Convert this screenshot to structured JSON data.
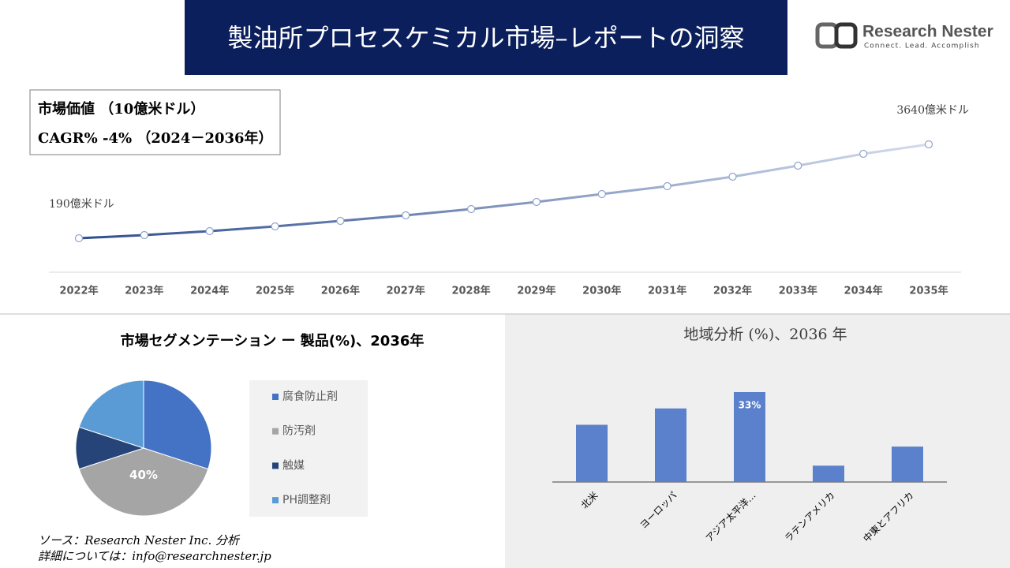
{
  "header": {
    "title": "製油所プロセスケミカル市場–レポートの洞察",
    "logo_name": "Research Nester",
    "logo_tagline": "Connect. Lead. Accomplish"
  },
  "chart_data": [
    {
      "type": "line",
      "annotations": [
        "市場価値 （10億米ドル）",
        "CAGR% -4% （2024－2036年）"
      ],
      "categories": [
        "2022年",
        "2023年",
        "2024年",
        "2025年",
        "2026年",
        "2027年",
        "2028年",
        "2029年",
        "2030年",
        "2031年",
        "2032年",
        "2033年",
        "2034年",
        "2035年"
      ],
      "values": [
        190,
        306,
        451,
        625,
        828,
        1031,
        1263,
        1524,
        1814,
        2104,
        2452,
        2858,
        3293,
        3640
      ],
      "value_labels": [
        "190億米ドル",
        null,
        null,
        null,
        null,
        null,
        null,
        null,
        null,
        null,
        null,
        null,
        null,
        "3640億米ドル"
      ],
      "color": "#2e4e8f"
    },
    {
      "type": "pie",
      "title": "市場セグメンテーション ー 製品(%)、2036年",
      "categories": [
        "腐食防止剤",
        "防汚剤",
        "触媒",
        "PH調整剤"
      ],
      "values": [
        30,
        40,
        10,
        20
      ],
      "value_labels": [
        null,
        "40%",
        null,
        null
      ],
      "colors": [
        "#4472c4",
        "#a5a5a5",
        "#264478",
        "#5b9bd5"
      ]
    },
    {
      "type": "bar",
      "title": "地域分析 (%)、2036 年",
      "categories": [
        "北米",
        "ヨーロッパ",
        "アジア太平洋…",
        "ラテンアメリカ",
        "中東とアフリカ"
      ],
      "values": [
        21,
        27,
        33,
        6,
        13
      ],
      "value_labels": [
        null,
        null,
        "33%",
        null,
        null
      ],
      "color": "#5b80cc"
    }
  ],
  "footer": {
    "source": "ソース：Research Nester Inc. 分析",
    "contact": "詳細については：info@researchnester.jp"
  }
}
